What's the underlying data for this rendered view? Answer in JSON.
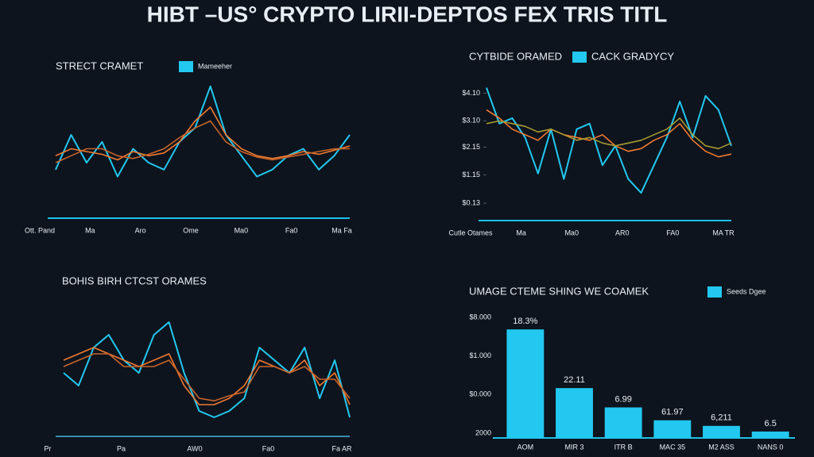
{
  "title": "HIBT –US° CRYPTO LIRII-DEPTOS FEX TRIS TITL",
  "chart_data": [
    {
      "type": "line",
      "title": "STRECT CRAMET",
      "ylim": [
        0,
        10
      ],
      "xticklabels": [
        "Ott. Pand",
        "Ma",
        "Aro",
        "Ome",
        "Ma0",
        "Fa0",
        "Ma Fa"
      ],
      "series": [
        {
          "name": "Mameeher",
          "color": "#22c8f0",
          "values": [
            3.5,
            6,
            4,
            5.5,
            3,
            5,
            4,
            3.5,
            5.5,
            6.5,
            9.5,
            6,
            4.5,
            3,
            3.5,
            4.5,
            5,
            3.5,
            4.5,
            6
          ]
        },
        {
          "color": "#f07a30",
          "values": [
            4.5,
            5,
            4.8,
            4.6,
            4.2,
            4.8,
            4.5,
            4.7,
            5.5,
            7,
            8,
            6,
            5,
            4.5,
            4.3,
            4.5,
            4.8,
            4.6,
            4.9,
            5.2
          ]
        },
        {
          "color": "#c8642a",
          "values": [
            4,
            4.5,
            5,
            5,
            4.5,
            4.3,
            4.6,
            5,
            5.8,
            6.5,
            7,
            5.5,
            4.8,
            4.4,
            4.2,
            4.4,
            4.6,
            4.8,
            5,
            5
          ]
        }
      ]
    },
    {
      "type": "line",
      "title": "CYTBIDE ORAMED",
      "ylim": [
        -0.5,
        4.6
      ],
      "yticks": [
        {
          "value": 4.1,
          "label": "$4.10"
        },
        {
          "value": 3.1,
          "label": "$3.10"
        },
        {
          "value": 2.15,
          "label": "$2.15"
        },
        {
          "value": 1.15,
          "label": "$1.15"
        },
        {
          "value": 0.13,
          "label": "$0.13"
        }
      ],
      "xticklabels": [
        "Cutle Otames",
        "Ma",
        "Ma0",
        "AR0",
        "FA0",
        "MA TR"
      ],
      "series": [
        {
          "name": "CACK GRADYCY",
          "color": "#22c8f0",
          "values": [
            4.3,
            3.0,
            3.2,
            2.5,
            1.2,
            2.8,
            1.0,
            2.8,
            3.0,
            1.5,
            2.2,
            1.0,
            0.5,
            1.5,
            2.5,
            3.8,
            2.5,
            4.0,
            3.5,
            2.2
          ]
        },
        {
          "color": "#f07a30",
          "values": [
            3.5,
            3.2,
            2.8,
            2.6,
            2.4,
            2.8,
            2.6,
            2.5,
            2.4,
            2.6,
            2.2,
            2.0,
            2.1,
            2.4,
            2.6,
            3.0,
            2.4,
            2.0,
            1.8,
            1.9
          ]
        },
        {
          "color": "#a89a30",
          "values": [
            3.0,
            3.1,
            3.0,
            2.9,
            2.7,
            2.8,
            2.6,
            2.4,
            2.5,
            2.3,
            2.2,
            2.3,
            2.4,
            2.6,
            2.8,
            3.2,
            2.6,
            2.2,
            2.1,
            2.3
          ]
        }
      ]
    },
    {
      "type": "line",
      "title": "BOHIS BIRH CTCST ORAMES",
      "ylim": [
        0,
        10
      ],
      "xticklabels": [
        "Pr",
        "Pa",
        "AW0",
        "Fa0",
        "Fa AR"
      ],
      "series": [
        {
          "color": "#22c8f0",
          "values": [
            5,
            4,
            7,
            8,
            6,
            5,
            8,
            9,
            5,
            2,
            1.5,
            2,
            3,
            7,
            6,
            5,
            7,
            3,
            6,
            1.5
          ]
        },
        {
          "color": "#f07a30",
          "values": [
            6,
            6.5,
            7,
            6.5,
            6,
            5.5,
            6,
            6.5,
            4,
            2.5,
            2.5,
            3,
            4,
            6,
            5.5,
            5,
            6,
            4,
            5,
            2.5
          ]
        },
        {
          "color": "#c8642a",
          "values": [
            5.5,
            6,
            6.5,
            6.5,
            5.5,
            5.5,
            5.5,
            6,
            4.5,
            3,
            2.8,
            3.2,
            3.5,
            5.5,
            5.5,
            5,
            5.5,
            4.5,
            4.5,
            3
          ]
        }
      ]
    },
    {
      "type": "bar",
      "title": "UMAGE CTEME SHING WE COAMEK",
      "ylim": [
        0,
        150
      ],
      "ytick_labels": [
        "$8.000",
        "$1.000",
        "$0.000",
        "2000"
      ],
      "categories": [
        "AOM",
        "MIR 3",
        "ITR B",
        "MAC 35",
        "M2 ASS",
        "NANS 0"
      ],
      "series": [
        {
          "name": "Seeds Dgee",
          "color": "#22c8f0",
          "values": [
            135,
            62,
            38,
            22,
            15,
            8
          ]
        }
      ],
      "annotations": [
        "18.3%",
        "22.11",
        "6.99",
        "61.97",
        "6,211",
        "6.5"
      ]
    }
  ]
}
